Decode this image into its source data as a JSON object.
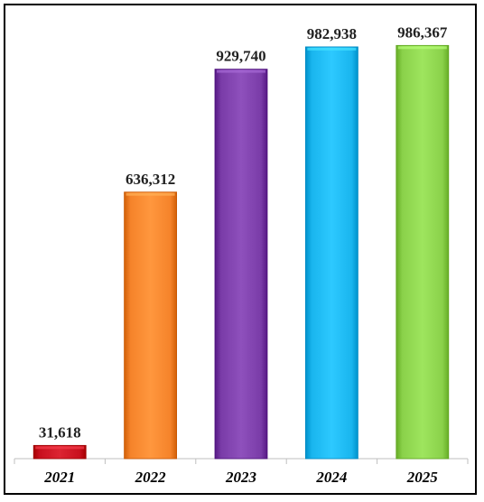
{
  "chart_data": {
    "type": "bar",
    "categories": [
      "2021",
      "2022",
      "2023",
      "2024",
      "2025"
    ],
    "values": [
      31618,
      636312,
      929740,
      982938,
      986367
    ],
    "value_labels": [
      "31,618",
      "636,312",
      "929,740",
      "982,938",
      "986,367"
    ],
    "colors": [
      "#c8101e",
      "#f5832a",
      "#7a3ca8",
      "#19b5ee",
      "#8ad14a"
    ],
    "ylim": [
      0,
      1000000
    ],
    "grid": false,
    "legend": "none",
    "title": "",
    "xlabel": "",
    "ylabel": ""
  }
}
